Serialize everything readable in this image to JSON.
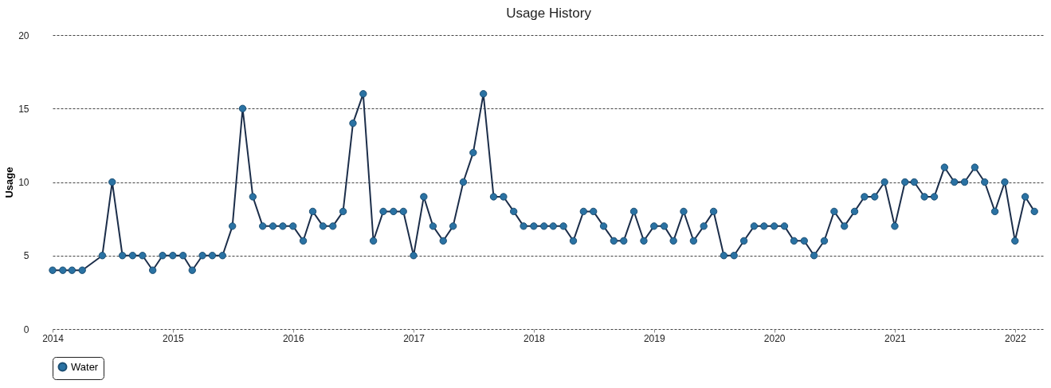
{
  "chart_data": {
    "type": "line",
    "title": "Usage History",
    "ylabel": "Usage",
    "x": [
      "2014-01",
      "2014-02",
      "2014-03",
      "2014-04",
      "2014-06",
      "2014-07",
      "2014-08",
      "2014-09",
      "2014-10",
      "2014-11",
      "2014-12",
      "2015-01",
      "2015-02",
      "2015-03",
      "2015-04",
      "2015-05",
      "2015-06",
      "2015-07",
      "2015-08",
      "2015-09",
      "2015-10",
      "2015-11",
      "2015-12",
      "2016-01",
      "2016-02",
      "2016-03",
      "2016-04",
      "2016-05",
      "2016-06",
      "2016-07",
      "2016-08",
      "2016-09",
      "2016-10",
      "2016-11",
      "2016-12",
      "2017-01",
      "2017-02",
      "2017-03",
      "2017-04",
      "2017-05",
      "2017-06",
      "2017-07",
      "2017-08",
      "2017-09",
      "2017-10",
      "2017-11",
      "2017-12",
      "2018-01",
      "2018-02",
      "2018-03",
      "2018-04",
      "2018-05",
      "2018-06",
      "2018-07",
      "2018-08",
      "2018-09",
      "2018-10",
      "2018-11",
      "2018-12",
      "2019-01",
      "2019-02",
      "2019-03",
      "2019-04",
      "2019-05",
      "2019-06",
      "2019-07",
      "2019-08",
      "2019-09",
      "2019-10",
      "2019-11",
      "2019-12",
      "2020-01",
      "2020-02",
      "2020-03",
      "2020-04",
      "2020-05",
      "2020-06",
      "2020-07",
      "2020-08",
      "2020-09",
      "2020-10",
      "2020-11",
      "2020-12",
      "2021-01",
      "2021-02",
      "2021-03",
      "2021-04",
      "2021-05",
      "2021-06",
      "2021-07",
      "2021-08",
      "2021-09",
      "2021-10",
      "2021-11",
      "2021-12",
      "2022-01",
      "2022-02",
      "2022-03"
    ],
    "series": [
      {
        "name": "Water",
        "color": "#2a72a3",
        "values": [
          4,
          4,
          4,
          4,
          5,
          10,
          5,
          5,
          5,
          4,
          5,
          5,
          5,
          4,
          5,
          5,
          5,
          7,
          15,
          9,
          7,
          7,
          7,
          7,
          6,
          8,
          7,
          7,
          8,
          14,
          16,
          6,
          8,
          8,
          8,
          5,
          9,
          7,
          6,
          7,
          10,
          12,
          16,
          9,
          9,
          8,
          7,
          7,
          7,
          7,
          7,
          6,
          8,
          8,
          7,
          6,
          6,
          8,
          6,
          7,
          7,
          6,
          8,
          6,
          7,
          8,
          5,
          5,
          6,
          7,
          7,
          7,
          7,
          6,
          6,
          5,
          6,
          8,
          7,
          8,
          9,
          9,
          10,
          7,
          10,
          10,
          9,
          9,
          11,
          10,
          10,
          11,
          10,
          8,
          10,
          6,
          9,
          8
        ]
      }
    ],
    "xlim": [
      "2014-01",
      "2022-04"
    ],
    "xticks": [
      "2014",
      "2015",
      "2016",
      "2017",
      "2018",
      "2019",
      "2020",
      "2021",
      "2022"
    ],
    "ylim": [
      0,
      20
    ],
    "yticks": [
      0,
      5,
      10,
      15,
      20
    ],
    "grid": "y",
    "legend": "bottom",
    "marker": "circle",
    "line_style": "solid"
  }
}
